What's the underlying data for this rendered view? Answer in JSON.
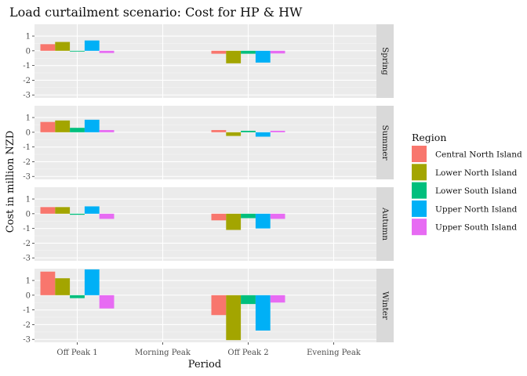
{
  "chart_data": {
    "type": "bar",
    "title": "Load curtailment scenario: Cost for HP & HW",
    "xlabel": "Period",
    "ylabel": "Cost in million NZD",
    "categories": [
      "Off Peak 1",
      "Morning Peak",
      "Off Peak 2",
      "Evening Peak"
    ],
    "ylim": [
      -3.2,
      1.8
    ],
    "yticks": [
      1,
      0,
      -1,
      -2,
      -3
    ],
    "ytick_labels": [
      "1",
      "0",
      "-1",
      "-2",
      "-3"
    ],
    "grid": true,
    "legend_position": "right",
    "legend_title": "Region",
    "series": [
      {
        "name": "Central North Island",
        "color": "#F8766D"
      },
      {
        "name": "Lower North Island",
        "color": "#A3A500"
      },
      {
        "name": "Lower South Island",
        "color": "#00BF7D"
      },
      {
        "name": "Upper North Island",
        "color": "#00B0F6"
      },
      {
        "name": "Upper South Island",
        "color": "#E76BF3"
      }
    ],
    "panels": [
      {
        "label": "Spring",
        "values": [
          [
            0.45,
            0,
            -0.2,
            0
          ],
          [
            0.6,
            0,
            -0.85,
            0
          ],
          [
            -0.05,
            0,
            -0.2,
            0
          ],
          [
            0.7,
            0,
            -0.8,
            0
          ],
          [
            -0.15,
            0,
            -0.18,
            0
          ]
        ]
      },
      {
        "label": "Summer",
        "values": [
          [
            0.7,
            0,
            0.15,
            0
          ],
          [
            0.8,
            0,
            -0.25,
            0
          ],
          [
            0.3,
            0,
            0.1,
            0
          ],
          [
            0.85,
            0,
            -0.3,
            0
          ],
          [
            0.15,
            0,
            0.1,
            0
          ]
        ]
      },
      {
        "label": "Autumn",
        "values": [
          [
            0.45,
            0,
            -0.45,
            0
          ],
          [
            0.45,
            0,
            -1.1,
            0
          ],
          [
            -0.07,
            0,
            -0.3,
            0
          ],
          [
            0.5,
            0,
            -1.0,
            0
          ],
          [
            -0.35,
            0,
            -0.35,
            0
          ]
        ]
      },
      {
        "label": "Winter",
        "values": [
          [
            1.6,
            0,
            -1.35,
            0
          ],
          [
            1.15,
            0,
            -3.05,
            0
          ],
          [
            -0.2,
            0,
            -0.6,
            0
          ],
          [
            1.75,
            0,
            -2.4,
            0
          ],
          [
            -0.9,
            0,
            -0.5,
            0
          ]
        ]
      }
    ]
  }
}
